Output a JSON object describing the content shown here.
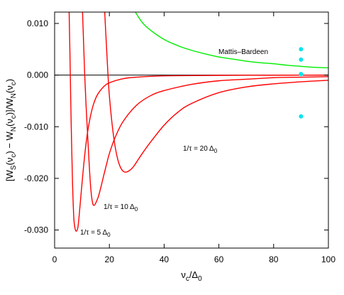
{
  "chart_data": {
    "type": "line",
    "xlabel": "ν_c/Δ_0",
    "ylabel": "[W_S(ν_c) − W_N(ν_c)]/W_N(ν_c)",
    "xlim": [
      0,
      100
    ],
    "ylim": [
      -0.0335,
      0.0122
    ],
    "x_ticks": [
      0,
      20,
      40,
      60,
      80,
      100
    ],
    "x_tick_labels": [
      "0",
      "20",
      "40",
      "60",
      "80",
      "100"
    ],
    "y_ticks": [
      0.01,
      0.0,
      -0.01,
      -0.02,
      -0.03
    ],
    "y_tick_labels": [
      "0.010",
      "0.000",
      "-0.010",
      "-0.020",
      "-0.030"
    ],
    "grid": false,
    "colors": {
      "curves": "#ff0000",
      "mattis": "#00ee00",
      "points": "#00e5ee",
      "zero_line": "#000000"
    },
    "series": [
      {
        "name": "Mattis–Bardeen",
        "label_text": "Mattis–Bardeen",
        "color": "#00ee00",
        "x": [
          29.5,
          32,
          35,
          40,
          45,
          50,
          55,
          60,
          65,
          70,
          75,
          80,
          85,
          90,
          95,
          100
        ],
        "y": [
          0.0122,
          0.0102,
          0.0087,
          0.0069,
          0.0057,
          0.0048,
          0.0041,
          0.0035,
          0.0031,
          0.0027,
          0.0024,
          0.0022,
          0.0019,
          0.0017,
          0.0015,
          0.0014
        ]
      },
      {
        "name": "1/τ = 5 Δ0",
        "label_parts": [
          "1/τ = 5 Δ",
          "0"
        ],
        "color": "#ff0000",
        "x": [
          5.3,
          5.6,
          6,
          6.5,
          7,
          7.5,
          8,
          8.5,
          9,
          10,
          11,
          12,
          13,
          14,
          15,
          16,
          18,
          20,
          25,
          30,
          40,
          50,
          60,
          70,
          80,
          90,
          100
        ],
        "y": [
          0.0122,
          0.004,
          -0.008,
          -0.02,
          -0.0275,
          -0.0298,
          -0.0302,
          -0.0295,
          -0.027,
          -0.021,
          -0.0155,
          -0.0112,
          -0.0082,
          -0.006,
          -0.0045,
          -0.0035,
          -0.0022,
          -0.0015,
          -0.0007,
          -0.0004,
          -0.00015,
          -0.0001,
          -5e-05,
          -3e-05,
          -2e-05,
          -1e-05,
          0.0
        ]
      },
      {
        "name": "1/τ = 10 Δ0",
        "label_parts": [
          "1/τ = 10 Δ",
          "0"
        ],
        "color": "#ff0000",
        "x": [
          10.2,
          10.6,
          11,
          11.5,
          12,
          12.5,
          13,
          13.5,
          14,
          14.5,
          15,
          16,
          17,
          18,
          19,
          20,
          22,
          25,
          30,
          35,
          40,
          50,
          60,
          70,
          80,
          90,
          100
        ],
        "y": [
          0.0122,
          0.006,
          0.0,
          -0.006,
          -0.011,
          -0.016,
          -0.0205,
          -0.0235,
          -0.025,
          -0.0252,
          -0.0248,
          -0.0235,
          -0.0215,
          -0.0193,
          -0.0172,
          -0.0152,
          -0.0122,
          -0.009,
          -0.0058,
          -0.004,
          -0.003,
          -0.0018,
          -0.0011,
          -0.0008,
          -0.0005,
          -0.0004,
          -0.0003
        ]
      },
      {
        "name": "1/τ = 20 Δ0",
        "label_parts": [
          "1/τ = 20 Δ",
          "0"
        ],
        "color": "#ff0000",
        "x": [
          18.3,
          18.6,
          19,
          19.5,
          20,
          21,
          22,
          23,
          24,
          25,
          26,
          27,
          28,
          29,
          30,
          32,
          35,
          40,
          45,
          50,
          60,
          70,
          80,
          90,
          100
        ],
        "y": [
          0.0122,
          0.009,
          0.005,
          0.0,
          -0.004,
          -0.0095,
          -0.0135,
          -0.0162,
          -0.0178,
          -0.0186,
          -0.0188,
          -0.0186,
          -0.0182,
          -0.0176,
          -0.0168,
          -0.0152,
          -0.013,
          -0.0097,
          -0.0072,
          -0.0055,
          -0.0034,
          -0.0023,
          -0.0017,
          -0.0013,
          -0.001
        ]
      }
    ],
    "points": {
      "color": "#00e5ee",
      "x": [
        90,
        90,
        90,
        90
      ],
      "y": [
        0.005,
        0.003,
        0.0002,
        -0.008
      ]
    }
  }
}
